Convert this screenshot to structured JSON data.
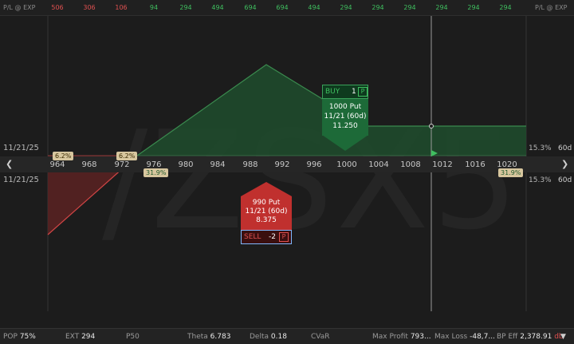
{
  "topbar": {
    "left_label": "P/L @ EXP",
    "right_label": "P/L @ EXP",
    "values": [
      {
        "text": "506",
        "color": "#e05050"
      },
      {
        "text": "306",
        "color": "#e05050"
      },
      {
        "text": "106",
        "color": "#e05050"
      },
      {
        "text": "94",
        "color": "#3fbf5f"
      },
      {
        "text": "294",
        "color": "#3fbf5f"
      },
      {
        "text": "494",
        "color": "#3fbf5f"
      },
      {
        "text": "694",
        "color": "#3fbf5f"
      },
      {
        "text": "694",
        "color": "#3fbf5f"
      },
      {
        "text": "494",
        "color": "#3fbf5f"
      },
      {
        "text": "294",
        "color": "#3fbf5f"
      },
      {
        "text": "294",
        "color": "#3fbf5f"
      },
      {
        "text": "294",
        "color": "#3fbf5f"
      },
      {
        "text": "294",
        "color": "#3fbf5f"
      },
      {
        "text": "294",
        "color": "#3fbf5f"
      },
      {
        "text": "294",
        "color": "#3fbf5f"
      }
    ]
  },
  "watermark": "/ZSX5",
  "expiration": {
    "upper_date": "11/21/25",
    "lower_date": "11/21/25",
    "upper_pct": "15.3%",
    "lower_pct": "15.3%",
    "upper_days": "60d",
    "lower_days": "60d"
  },
  "strikes": [
    "964",
    "968",
    "972",
    "976",
    "980",
    "984",
    "988",
    "992",
    "996",
    "1000",
    "1004",
    "1008",
    "1012",
    "1016",
    "1020"
  ],
  "tags": {
    "left_top": "6.2%",
    "mid_top": "6.2%",
    "left_bottom": "31.9%",
    "right_bottom": "31.9%"
  },
  "buy_order": {
    "side": "BUY",
    "qty": "1",
    "type_btn": "P",
    "line1": "1000 Put",
    "line2": "11/21 (60d)",
    "line3": "11.250"
  },
  "sell_order": {
    "side": "SELL",
    "qty": "-2",
    "type_btn": "P",
    "line1": "990 Put",
    "line2": "11/21 (60d)",
    "line3": "8.375"
  },
  "status": {
    "pop_label": "POP",
    "pop_value": "75%",
    "ext_label": "EXT",
    "ext_value": "294",
    "p50_label": "P50",
    "theta_label": "Theta",
    "theta_value": "6.783",
    "delta_label": "Delta",
    "delta_value": "0.18",
    "cvar_label": "CVaR",
    "maxprofit_label": "Max Profit",
    "maxprofit_value": "793...",
    "maxloss_label": "Max Loss",
    "maxloss_value": "-48,7...",
    "bpeff_label": "BP Eff",
    "bpeff_value": "2,378.91",
    "bpeff_unit": "db"
  },
  "colors": {
    "profit": "#3fbf5f",
    "loss": "#e05050",
    "profit_fill": "#1f4a2c",
    "loss_fill": "#5a2222"
  }
}
